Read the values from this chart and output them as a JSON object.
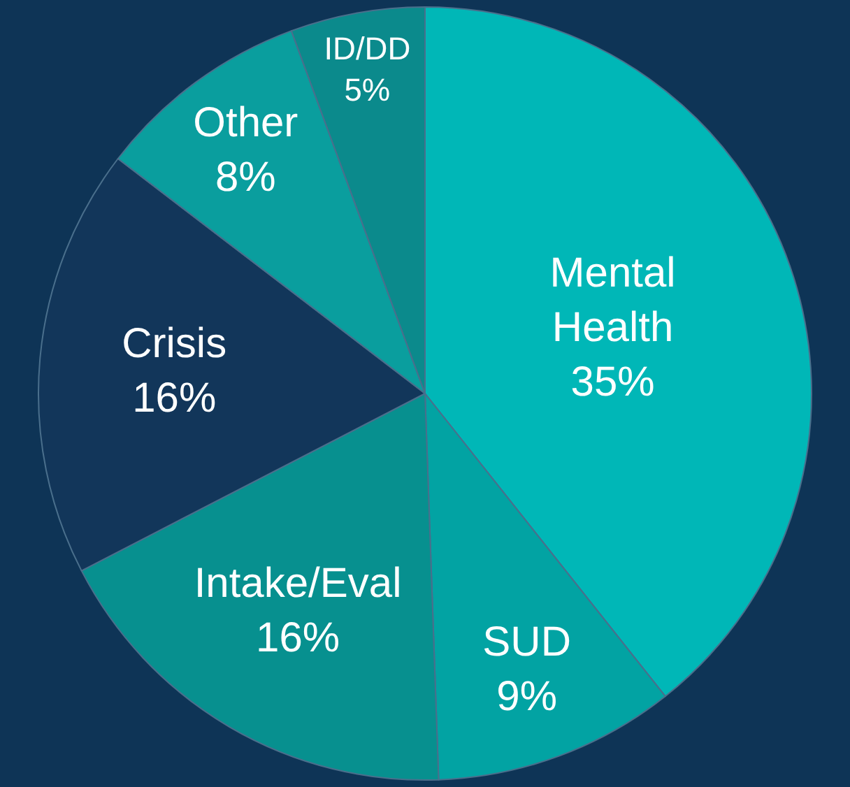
{
  "chart_data": {
    "type": "pie",
    "categories": [
      "Mental Health",
      "SUD",
      "Intake/Eval",
      "Crisis",
      "Other",
      "ID/DD"
    ],
    "values": [
      35,
      9,
      16,
      16,
      8,
      5
    ],
    "value_labels": [
      "35%",
      "9%",
      "16%",
      "16%",
      "8%",
      "5%"
    ],
    "colors": [
      "#00b7b7",
      "#02a3a3",
      "#07908f",
      "#12365a",
      "#0a9e9e",
      "#0b8a8c"
    ]
  }
}
